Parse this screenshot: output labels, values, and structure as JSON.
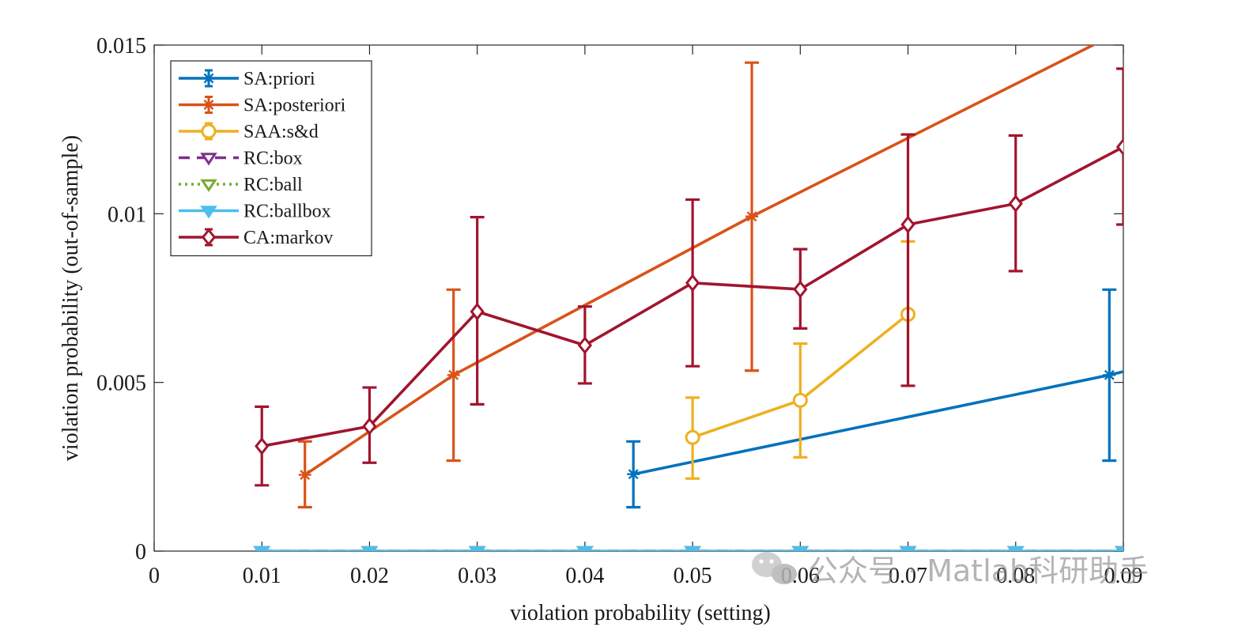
{
  "chart_data": {
    "type": "line",
    "title": "",
    "xlabel": "violation probability (setting)",
    "ylabel": "violation probability (out-of-sample)",
    "xlim": [
      0,
      0.09
    ],
    "ylim": [
      0,
      0.015
    ],
    "xticks": [
      "0",
      "0.01",
      "0.02",
      "0.03",
      "0.04",
      "0.05",
      "0.06",
      "0.07",
      "0.08",
      "0.09"
    ],
    "yticks": [
      "0",
      "0.005",
      "0.01",
      "0.015"
    ],
    "legend_position": "top-left",
    "series": [
      {
        "name": "SA:priori",
        "color": "#0072BD",
        "dash": "solid",
        "marker": "asterisk",
        "x": [
          0.0445,
          0.0887
        ],
        "y": [
          0.00228,
          0.00522
        ],
        "err_low": [
          0.0013,
          0.00268
        ],
        "err_high": [
          0.00325,
          0.00775
        ],
        "line_extends_to": [
          0.09,
          0.00532
        ]
      },
      {
        "name": "SA:posteriori",
        "color": "#D95319",
        "dash": "solid",
        "marker": "asterisk",
        "x": [
          0.014,
          0.0278,
          0.0555
        ],
        "y": [
          0.00226,
          0.00522,
          0.00992
        ],
        "err_low": [
          0.0013,
          0.00268,
          0.00535
        ],
        "err_high": [
          0.00325,
          0.00775,
          0.01448
        ],
        "line_extends_to": [
          0.0875,
          0.01505
        ]
      },
      {
        "name": "SAA:s&d",
        "color": "#EDB120",
        "dash": "solid",
        "marker": "circle",
        "x": [
          0.05,
          0.06,
          0.07
        ],
        "y": [
          0.00337,
          0.00447,
          0.00702
        ],
        "err_low": [
          0.00215,
          0.00278,
          0.0049
        ],
        "err_high": [
          0.00455,
          0.00615,
          0.00918
        ]
      },
      {
        "name": "RC:box",
        "color": "#7E2F8E",
        "dash": "dashed",
        "marker": "triangle-down",
        "x": [
          0.01,
          0.02,
          0.03,
          0.04,
          0.05,
          0.06,
          0.07,
          0.08,
          0.09
        ],
        "y": [
          0,
          0,
          0,
          0,
          0,
          0,
          0,
          0,
          0
        ]
      },
      {
        "name": "RC:ball",
        "color": "#77AC30",
        "dash": "dotted",
        "marker": "triangle-down",
        "x": [
          0.01,
          0.02,
          0.03,
          0.04,
          0.05,
          0.06,
          0.07,
          0.08,
          0.09
        ],
        "y": [
          0,
          0,
          0,
          0,
          0,
          0,
          0,
          0,
          0
        ]
      },
      {
        "name": "RC:ballbox",
        "color": "#4DBEEE",
        "dash": "solid",
        "marker": "triangle-down-filled",
        "x": [
          0.01,
          0.02,
          0.03,
          0.04,
          0.05,
          0.06,
          0.07,
          0.08,
          0.09
        ],
        "y": [
          0,
          0,
          0,
          0,
          0,
          0,
          0,
          0,
          0
        ]
      },
      {
        "name": "CA:markov",
        "color": "#A2142F",
        "dash": "solid",
        "marker": "diamond",
        "x": [
          0.01,
          0.02,
          0.03,
          0.04,
          0.05,
          0.06,
          0.07,
          0.08,
          0.09
        ],
        "y": [
          0.00311,
          0.0037,
          0.0071,
          0.0061,
          0.00795,
          0.00776,
          0.00968,
          0.0103,
          0.01198
        ],
        "err_low": [
          0.00195,
          0.00262,
          0.00435,
          0.00497,
          0.00548,
          0.0066,
          0.0049,
          0.0083,
          0.00968
        ],
        "err_high": [
          0.00428,
          0.00485,
          0.0099,
          0.00725,
          0.01042,
          0.00895,
          0.01235,
          0.01232,
          0.0143
        ]
      }
    ]
  },
  "watermark": {
    "text": "公众号 · Matlab科研助手",
    "icon": "wechat-icon"
  }
}
